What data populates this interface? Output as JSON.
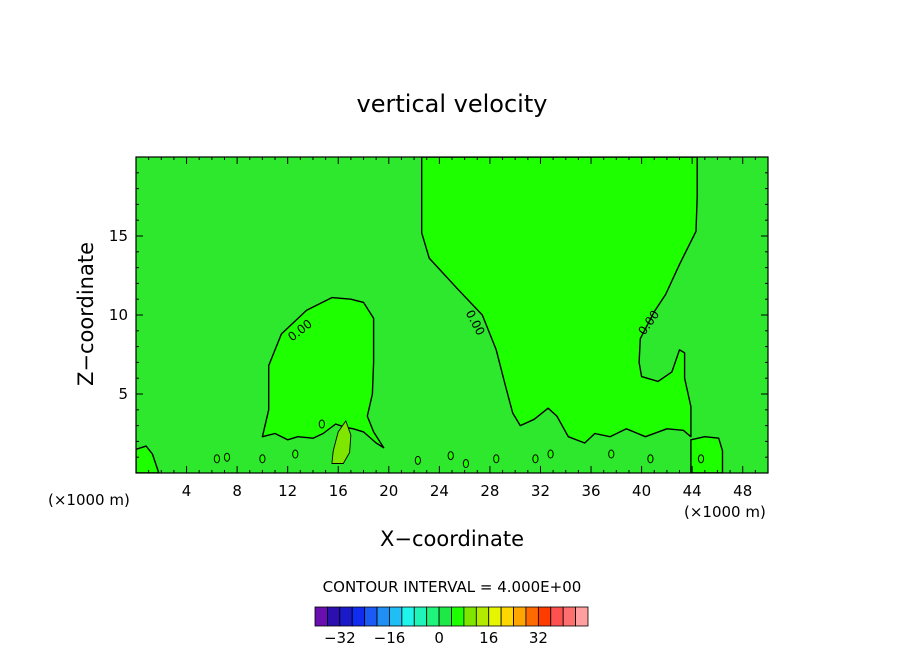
{
  "chart_data": {
    "type": "contour",
    "title": "vertical velocity",
    "xlabel": "X−coordinate",
    "ylabel": "Z−coordinate",
    "x_unit": "(×1000 m)",
    "z_unit": "(×1000 m)",
    "xlim": [
      0,
      50
    ],
    "ylim": [
      0,
      20
    ],
    "x_ticks": [
      4,
      8,
      12,
      16,
      20,
      24,
      28,
      32,
      36,
      40,
      44,
      48
    ],
    "x_tick_labels": [
      "4",
      "8",
      "12",
      "16",
      "20",
      "24",
      "28",
      "32",
      "36",
      "40",
      "44",
      "48"
    ],
    "y_ticks": [
      5,
      10,
      15
    ],
    "y_tick_labels": [
      "5",
      "10",
      "15"
    ],
    "contour_interval_text": "CONTOUR INTERVAL = 4.000E+00",
    "contour_interval": 4,
    "contour_labels": [
      {
        "text": "0.00",
        "x": 13.0,
        "z": 9.0,
        "angle": -38
      },
      {
        "text": "0.00",
        "x": 26.8,
        "z": 9.5,
        "angle": 62
      },
      {
        "text": "0.00",
        "x": 40.6,
        "z": 9.5,
        "angle": -55
      }
    ],
    "background_color": "#2ee82e",
    "positive_region_color": "#1eff00",
    "strong_positive_color": "#7fe600",
    "updraft_regions": [
      {
        "name": "left",
        "points": [
          [
            10,
            2.3
          ],
          [
            10.5,
            4
          ],
          [
            10.5,
            6.8
          ],
          [
            11.5,
            8.8
          ],
          [
            13.5,
            10.3
          ],
          [
            15.5,
            11.1
          ],
          [
            17,
            11
          ],
          [
            18,
            10.8
          ],
          [
            18.8,
            9.8
          ],
          [
            18.8,
            7
          ],
          [
            18.7,
            5
          ],
          [
            18.3,
            3.6
          ],
          [
            18.8,
            2.6
          ],
          [
            19.6,
            1.6
          ],
          [
            19,
            1.9
          ],
          [
            18,
            2.6
          ],
          [
            17.2,
            2.8
          ],
          [
            16.5,
            2.9
          ],
          [
            15.8,
            3.1
          ],
          [
            14.8,
            2.5
          ],
          [
            14,
            2.2
          ],
          [
            12.8,
            2.3
          ],
          [
            12,
            2.1
          ],
          [
            11,
            2.5
          ],
          [
            10,
            2.3
          ]
        ]
      },
      {
        "name": "central",
        "points": [
          [
            22.6,
            20
          ],
          [
            22.6,
            15.2
          ],
          [
            23.2,
            13.6
          ],
          [
            25.5,
            11.6
          ],
          [
            27.4,
            10
          ],
          [
            28.5,
            7.8
          ],
          [
            29.2,
            5.6
          ],
          [
            29.8,
            3.8
          ],
          [
            30.4,
            3
          ],
          [
            31.5,
            3.4
          ],
          [
            32.6,
            4.1
          ],
          [
            33.3,
            3.6
          ],
          [
            34.2,
            2.3
          ],
          [
            35.5,
            1.9
          ],
          [
            36.3,
            2.5
          ],
          [
            37.5,
            2.3
          ],
          [
            38.8,
            2.8
          ],
          [
            40.3,
            2.3
          ],
          [
            42,
            2.8
          ],
          [
            43.3,
            2.7
          ],
          [
            43.9,
            2.3
          ],
          [
            43.9,
            4.2
          ],
          [
            43.4,
            6
          ],
          [
            43.4,
            7.6
          ],
          [
            43,
            7.8
          ],
          [
            42.4,
            6.4
          ],
          [
            41.3,
            5.8
          ],
          [
            40,
            6.1
          ],
          [
            39.8,
            7
          ],
          [
            39.9,
            8.5
          ],
          [
            41,
            10.2
          ],
          [
            41.9,
            11.3
          ],
          [
            43,
            13.2
          ],
          [
            44.3,
            15.3
          ],
          [
            44.4,
            17.5
          ],
          [
            44.4,
            20
          ]
        ]
      },
      {
        "name": "far-left",
        "points": [
          [
            0,
            0
          ],
          [
            0,
            1.5
          ],
          [
            0.8,
            1.7
          ],
          [
            1.3,
            1.2
          ],
          [
            1.8,
            0
          ]
        ]
      },
      {
        "name": "bottom-right",
        "points": [
          [
            43.9,
            0
          ],
          [
            43.9,
            2.1
          ],
          [
            45,
            2.3
          ],
          [
            46.1,
            2.2
          ],
          [
            46.4,
            1.4
          ],
          [
            46.4,
            0
          ]
        ]
      }
    ],
    "strong_updraft_regions": [
      {
        "name": "core-16km",
        "points": [
          [
            15.5,
            0.6
          ],
          [
            15.6,
            1.4
          ],
          [
            16,
            2.6
          ],
          [
            16.6,
            3.3
          ],
          [
            17,
            2.4
          ],
          [
            16.9,
            1.3
          ],
          [
            16.4,
            0.6
          ]
        ]
      }
    ],
    "small_cells": [
      {
        "x": 6.4,
        "z": 0.9
      },
      {
        "x": 7.2,
        "z": 1.0
      },
      {
        "x": 10.0,
        "z": 0.9
      },
      {
        "x": 12.6,
        "z": 1.2
      },
      {
        "x": 14.7,
        "z": 3.1
      },
      {
        "x": 22.3,
        "z": 0.8
      },
      {
        "x": 24.9,
        "z": 1.1
      },
      {
        "x": 26.1,
        "z": 0.6
      },
      {
        "x": 28.5,
        "z": 0.9
      },
      {
        "x": 31.6,
        "z": 0.9
      },
      {
        "x": 32.8,
        "z": 1.2
      },
      {
        "x": 37.6,
        "z": 1.2
      },
      {
        "x": 40.7,
        "z": 0.9
      },
      {
        "x": 44.7,
        "z": 0.9
      }
    ],
    "colorbar": {
      "colors": [
        "#6a0faf",
        "#2b0faf",
        "#1a1ac8",
        "#0f2cf0",
        "#1a5af5",
        "#1f8ef5",
        "#1fbef5",
        "#1ff5eb",
        "#1ff5b8",
        "#1ff57a",
        "#1ee846",
        "#1eff00",
        "#7fe600",
        "#b3eb00",
        "#e6f500",
        "#ffd700",
        "#ffa500",
        "#ff6a00",
        "#ff3c00",
        "#ff5050",
        "#ff6f6f",
        "#ff9f9f"
      ],
      "tick_labels": [
        "−32",
        "−16",
        "0",
        "16",
        "32"
      ],
      "tick_values": [
        -32,
        -16,
        0,
        16,
        32
      ],
      "min": -40,
      "max": 48
    }
  }
}
